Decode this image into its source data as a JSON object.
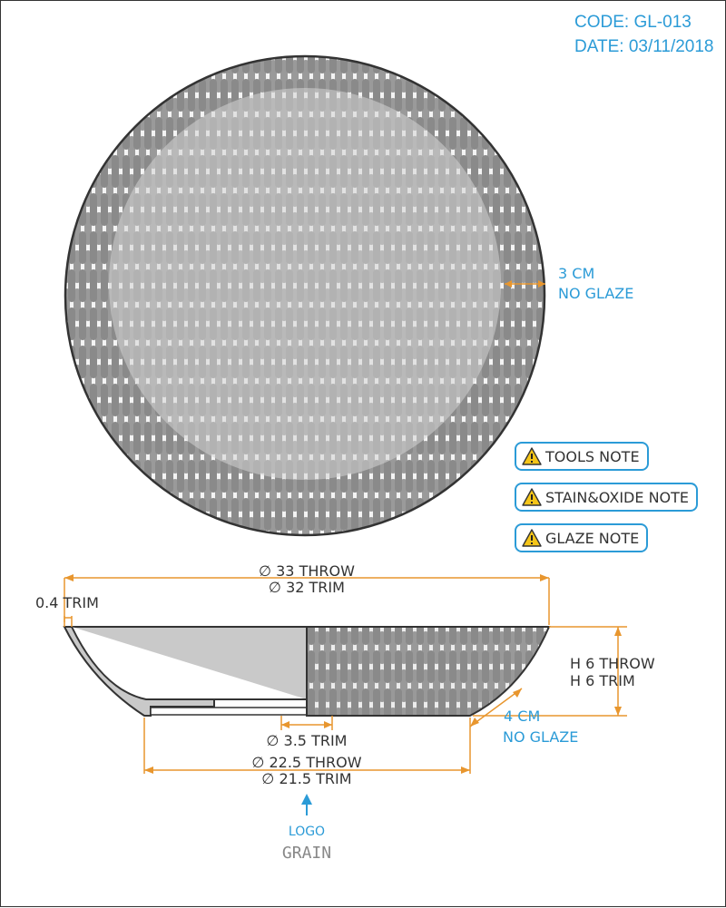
{
  "header": {
    "code": "CODE: GL-013",
    "date": "DATE: 03/11/2018"
  },
  "top_view": {
    "rim_note": {
      "line1": "3 CM",
      "line2": "NO GLAZE"
    }
  },
  "notes": [
    {
      "label": "TOOLS NOTE",
      "icon": "warning-icon"
    },
    {
      "label": "STAIN&OXIDE NOTE",
      "icon": "warning-icon"
    },
    {
      "label": "GLAZE NOTE",
      "icon": "warning-icon"
    }
  ],
  "section_view": {
    "diameter_top": {
      "line1": "∅ 33 THROW",
      "line2": "∅ 32 TRIM"
    },
    "wall_trim": "0.4 TRIM",
    "height": {
      "line1": "H 6 THROW",
      "line2": "H 6 TRIM"
    },
    "foot_note": {
      "line1": "4 CM",
      "line2": "NO GLAZE"
    },
    "foot_ring": "∅ 3.5 TRIM",
    "base": {
      "line1": "∅ 22.5 THROW",
      "line2": "∅ 21.5 TRIM"
    },
    "logo": {
      "label": "LOGO",
      "text": "GRAIN"
    }
  },
  "colors": {
    "dimension": "#e8962e",
    "annotation": "#2b9bd7",
    "outline": "#333333",
    "pattern": "#8a8a8a",
    "center_disk": "#cccccc",
    "body_fill": "#c9c9c9"
  }
}
